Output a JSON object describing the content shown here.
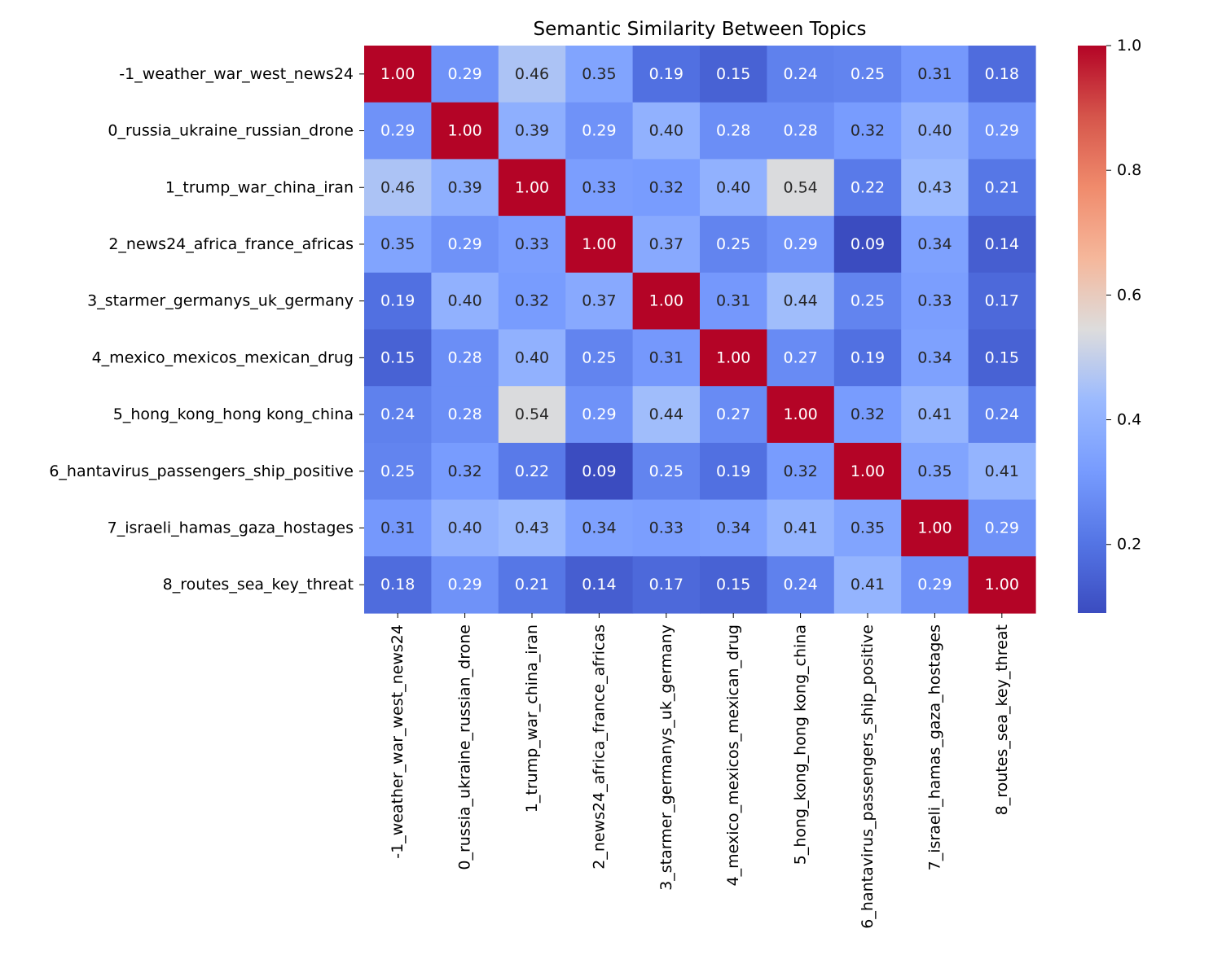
{
  "chart_data": {
    "type": "heatmap",
    "title": "Semantic Similarity Between Topics",
    "xlabel": "",
    "ylabel": "",
    "colormap": "coolwarm",
    "value_format": "2 decimals",
    "labels": [
      "-1_weather_war_west_news24",
      "0_russia_ukraine_russian_drone",
      "1_trump_war_china_iran",
      "2_news24_africa_france_africas",
      "3_starmer_germanys_uk_germany",
      "4_mexico_mexicos_mexican_drug",
      "5_hong_kong_hong kong_china",
      "6_hantavirus_passengers_ship_positive",
      "7_israeli_hamas_gaza_hostages",
      "8_routes_sea_key_threat"
    ],
    "matrix": [
      [
        1.0,
        0.29,
        0.46,
        0.35,
        0.19,
        0.15,
        0.24,
        0.25,
        0.31,
        0.18
      ],
      [
        0.29,
        1.0,
        0.39,
        0.29,
        0.4,
        0.28,
        0.28,
        0.32,
        0.4,
        0.29
      ],
      [
        0.46,
        0.39,
        1.0,
        0.33,
        0.32,
        0.4,
        0.54,
        0.22,
        0.43,
        0.21
      ],
      [
        0.35,
        0.29,
        0.33,
        1.0,
        0.37,
        0.25,
        0.29,
        0.09,
        0.34,
        0.14
      ],
      [
        0.19,
        0.4,
        0.32,
        0.37,
        1.0,
        0.31,
        0.44,
        0.25,
        0.33,
        0.17
      ],
      [
        0.15,
        0.28,
        0.4,
        0.25,
        0.31,
        1.0,
        0.27,
        0.19,
        0.34,
        0.15
      ],
      [
        0.24,
        0.28,
        0.54,
        0.29,
        0.44,
        0.27,
        1.0,
        0.32,
        0.41,
        0.24
      ],
      [
        0.25,
        0.32,
        0.22,
        0.09,
        0.25,
        0.19,
        0.32,
        1.0,
        0.35,
        0.41
      ],
      [
        0.31,
        0.4,
        0.43,
        0.34,
        0.33,
        0.34,
        0.41,
        0.35,
        1.0,
        0.29
      ],
      [
        0.18,
        0.29,
        0.21,
        0.14,
        0.17,
        0.15,
        0.24,
        0.41,
        0.29,
        1.0
      ]
    ],
    "vmin": 0.09,
    "vmax": 1.0,
    "colorbar_ticks": [
      "0.2",
      "0.4",
      "0.6",
      "0.8",
      "1.0"
    ]
  }
}
